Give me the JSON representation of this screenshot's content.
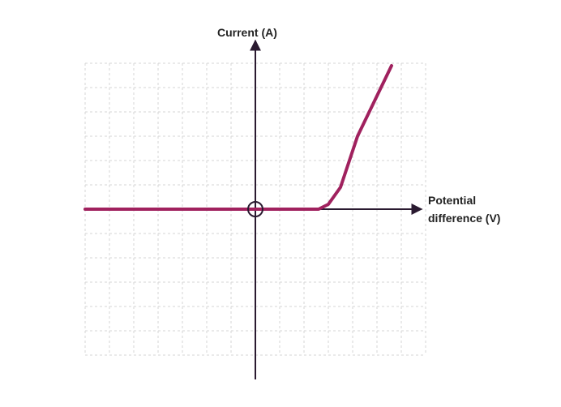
{
  "chart_data": {
    "type": "line",
    "title": "",
    "xlabel_lines": [
      "Potential",
      "difference (V)"
    ],
    "ylabel": "Current (A)",
    "grid": true,
    "x_ticks_labeled": false,
    "y_ticks_labeled": false,
    "origin_marker": "circle",
    "series": [
      {
        "color": "#a0215e",
        "points": [
          {
            "x": -7.0,
            "y": 0.0
          },
          {
            "x": 0.0,
            "y": 0.0
          },
          {
            "x": 2.6,
            "y": 0.0
          },
          {
            "x": 3.0,
            "y": 0.2
          },
          {
            "x": 3.5,
            "y": 0.9
          },
          {
            "x": 4.2,
            "y": 3.0
          },
          {
            "x": 5.6,
            "y": 5.9
          }
        ]
      }
    ]
  },
  "colors": {
    "grid": "#d4d4d4",
    "axis": "#2a1a30",
    "curve": "#a0215e"
  }
}
